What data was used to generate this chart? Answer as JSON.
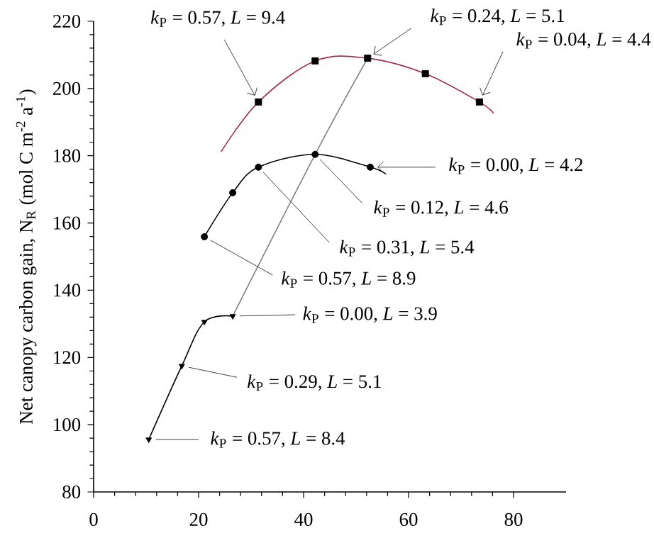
{
  "chart_data": {
    "type": "line",
    "ylabel": "Net canopy carbon gain, N$_{R}$ (mol C m$^{-2}$ a$^{-1}$)",
    "xlim": [
      0,
      90
    ],
    "xticks": [
      0,
      20,
      40,
      60,
      80
    ],
    "ylim": [
      80,
      220
    ],
    "yticks": [
      80,
      100,
      120,
      140,
      160,
      180,
      200,
      220
    ],
    "series": [
      {
        "type": "line",
        "color": "#a03048",
        "marker": "none",
        "x": [
          24.3,
          31.4,
          42.2,
          52.2,
          63.2,
          73.5,
          76.2
        ],
        "values": [
          181.2,
          196,
          208.2,
          209,
          204.4,
          196,
          192.6
        ]
      },
      {
        "type": "scatter",
        "color": "#000000",
        "marker": "square",
        "x": [
          31.4,
          42.2,
          52.2,
          63.2,
          73.5
        ],
        "values": [
          196,
          208.2,
          209,
          204.4,
          196
        ]
      },
      {
        "type": "line",
        "color": "#000000",
        "marker": "none",
        "x": [
          21.1,
          26.5,
          31.4,
          42.2,
          52.7,
          55.7
        ],
        "values": [
          155.9,
          169,
          176.6,
          180.4,
          176.6,
          174.5
        ]
      },
      {
        "type": "scatter",
        "color": "#000000",
        "marker": "circle",
        "x": [
          21.1,
          26.5,
          31.4,
          42.2,
          52.7
        ],
        "values": [
          155.9,
          169,
          176.6,
          180.4,
          176.6
        ]
      },
      {
        "type": "line",
        "color": "#000000",
        "marker": "none",
        "x": [
          10.5,
          16.8,
          21.1,
          26.5
        ],
        "values": [
          95.6,
          117.5,
          130.6,
          132.3
        ]
      },
      {
        "type": "scatter",
        "color": "#000000",
        "marker": "triangle",
        "x": [
          10.5,
          16.8,
          21.1,
          26.5
        ],
        "values": [
          95.6,
          117.5,
          130.6,
          132.3
        ]
      },
      {
        "type": "line",
        "color": "#808080",
        "marker": "none",
        "x": [
          26.5,
          42.2,
          52.2
        ],
        "values": [
          132.3,
          180.4,
          209
        ]
      }
    ],
    "annotations": [
      {
        "text": "*k*$_{P}$ = 0.57, *L* = 9.4",
        "x": 31.4,
        "y": 196
      },
      {
        "text": "*k*$_{P}$ = 0.24, *L* = 5.1",
        "x": 52.2,
        "y": 209
      },
      {
        "text": "*k*$_{P}$ = 0.04, *L* = 4.4",
        "x": 73.5,
        "y": 196
      },
      {
        "text": "*k*$_{P}$ = 0.00, *L* = 4.2",
        "x": 52.7,
        "y": 176.6
      },
      {
        "text": "*k*$_{P}$ = 0.12, *L* = 4.6",
        "x": 42.2,
        "y": 180.4
      },
      {
        "text": "*k*$_{P}$ = 0.31, *L* = 5.4",
        "x": 31.4,
        "y": 176.6
      },
      {
        "text": "*k*$_{P}$ = 0.57, *L* = 8.9",
        "x": 21.1,
        "y": 155.9
      },
      {
        "text": "*k*$_{P}$ = 0.00, *L* = 3.9",
        "x": 26.5,
        "y": 132.3
      },
      {
        "text": "*k*$_{P}$ = 0.29, *L* = 5.1",
        "x": 16.8,
        "y": 117.5
      },
      {
        "text": "*k*$_{P}$ = 0.57, *L* = 8.4",
        "x": 10.5,
        "y": 95.6
      }
    ]
  }
}
